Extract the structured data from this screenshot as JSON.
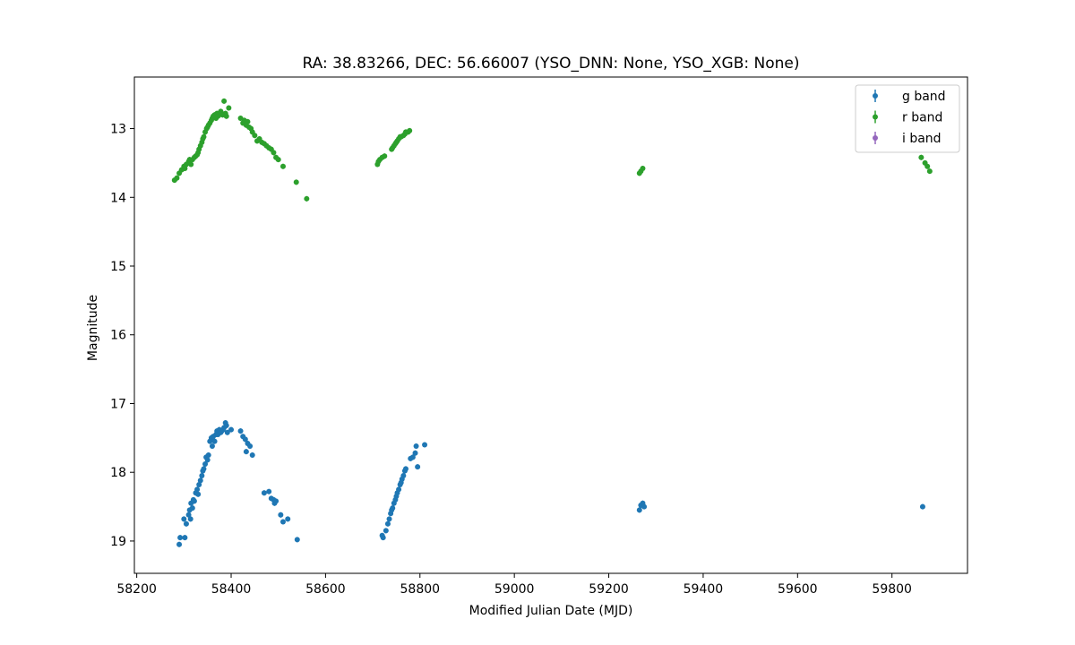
{
  "chart_data": {
    "type": "scatter",
    "title": "RA: 38.83266, DEC: 56.66007 (YSO_DNN: None, YSO_XGB: None)",
    "xlabel": "Modified Julian Date (MJD)",
    "ylabel": "Magnitude",
    "xlim": [
      58195,
      59960
    ],
    "ylim": [
      19.47,
      12.25
    ],
    "y_inverted": true,
    "grid": false,
    "legend_position": "top-right",
    "xticks": [
      58200,
      58400,
      58600,
      58800,
      59000,
      59200,
      59400,
      59600,
      59800
    ],
    "yticks": [
      13,
      14,
      15,
      16,
      17,
      18,
      19
    ],
    "series": [
      {
        "name": "g band",
        "color": "#1f77b4",
        "points": [
          [
            58290,
            19.05
          ],
          [
            58292,
            18.95
          ],
          [
            58300,
            18.68
          ],
          [
            58302,
            18.95
          ],
          [
            58305,
            18.75
          ],
          [
            58310,
            18.62
          ],
          [
            58312,
            18.55
          ],
          [
            58314,
            18.68
          ],
          [
            58315,
            18.45
          ],
          [
            58318,
            18.52
          ],
          [
            58320,
            18.4
          ],
          [
            58322,
            18.42
          ],
          [
            58325,
            18.3
          ],
          [
            58328,
            18.25
          ],
          [
            58330,
            18.32
          ],
          [
            58332,
            18.18
          ],
          [
            58335,
            18.12
          ],
          [
            58338,
            18.05
          ],
          [
            58340,
            17.98
          ],
          [
            58342,
            17.95
          ],
          [
            58345,
            17.88
          ],
          [
            58347,
            17.78
          ],
          [
            58350,
            17.82
          ],
          [
            58352,
            17.75
          ],
          [
            58355,
            17.55
          ],
          [
            58358,
            17.5
          ],
          [
            58360,
            17.62
          ],
          [
            58362,
            17.48
          ],
          [
            58365,
            17.55
          ],
          [
            58368,
            17.45
          ],
          [
            58370,
            17.4
          ],
          [
            58372,
            17.45
          ],
          [
            58375,
            17.38
          ],
          [
            58378,
            17.42
          ],
          [
            58380,
            17.4
          ],
          [
            58383,
            17.38
          ],
          [
            58385,
            17.35
          ],
          [
            58388,
            17.28
          ],
          [
            58390,
            17.32
          ],
          [
            58392,
            17.42
          ],
          [
            58400,
            17.38
          ],
          [
            58420,
            17.4
          ],
          [
            58425,
            17.48
          ],
          [
            58430,
            17.52
          ],
          [
            58432,
            17.7
          ],
          [
            58435,
            17.58
          ],
          [
            58440,
            17.62
          ],
          [
            58445,
            17.75
          ],
          [
            58470,
            18.3
          ],
          [
            58480,
            18.28
          ],
          [
            58485,
            18.38
          ],
          [
            58490,
            18.4
          ],
          [
            58492,
            18.45
          ],
          [
            58495,
            18.42
          ],
          [
            58505,
            18.62
          ],
          [
            58510,
            18.72
          ],
          [
            58520,
            18.68
          ],
          [
            58540,
            18.98
          ],
          [
            58720,
            18.92
          ],
          [
            58722,
            18.95
          ],
          [
            58728,
            18.85
          ],
          [
            58732,
            18.75
          ],
          [
            58735,
            18.68
          ],
          [
            58738,
            18.6
          ],
          [
            58740,
            18.55
          ],
          [
            58742,
            18.52
          ],
          [
            58745,
            18.45
          ],
          [
            58748,
            18.4
          ],
          [
            58750,
            18.35
          ],
          [
            58752,
            18.3
          ],
          [
            58755,
            18.25
          ],
          [
            58758,
            18.18
          ],
          [
            58760,
            18.15
          ],
          [
            58762,
            18.1
          ],
          [
            58765,
            18.05
          ],
          [
            58768,
            17.98
          ],
          [
            58770,
            17.95
          ],
          [
            58780,
            17.8
          ],
          [
            58785,
            17.78
          ],
          [
            58790,
            17.72
          ],
          [
            58792,
            17.62
          ],
          [
            58795,
            17.92
          ],
          [
            58810,
            17.6
          ],
          [
            59265,
            18.55
          ],
          [
            59268,
            18.48
          ],
          [
            59272,
            18.45
          ],
          [
            59275,
            18.5
          ],
          [
            59865,
            18.5
          ]
        ]
      },
      {
        "name": "r band",
        "color": "#2ca02c",
        "points": [
          [
            58280,
            13.75
          ],
          [
            58285,
            13.72
          ],
          [
            58290,
            13.65
          ],
          [
            58295,
            13.6
          ],
          [
            58300,
            13.55
          ],
          [
            58302,
            13.58
          ],
          [
            58305,
            13.52
          ],
          [
            58310,
            13.48
          ],
          [
            58312,
            13.45
          ],
          [
            58315,
            13.52
          ],
          [
            58318,
            13.45
          ],
          [
            58322,
            13.42
          ],
          [
            58325,
            13.4
          ],
          [
            58328,
            13.38
          ],
          [
            58330,
            13.35
          ],
          [
            58332,
            13.3
          ],
          [
            58335,
            13.25
          ],
          [
            58338,
            13.2
          ],
          [
            58340,
            13.15
          ],
          [
            58342,
            13.12
          ],
          [
            58345,
            13.05
          ],
          [
            58348,
            13.0
          ],
          [
            58350,
            12.98
          ],
          [
            58352,
            12.95
          ],
          [
            58355,
            12.92
          ],
          [
            58358,
            12.88
          ],
          [
            58360,
            12.85
          ],
          [
            58362,
            12.82
          ],
          [
            58365,
            12.8
          ],
          [
            58368,
            12.85
          ],
          [
            58370,
            12.78
          ],
          [
            58372,
            12.82
          ],
          [
            58375,
            12.8
          ],
          [
            58378,
            12.75
          ],
          [
            58380,
            12.78
          ],
          [
            58382,
            12.8
          ],
          [
            58385,
            12.6
          ],
          [
            58388,
            12.78
          ],
          [
            58390,
            12.82
          ],
          [
            58395,
            12.7
          ],
          [
            58420,
            12.85
          ],
          [
            58425,
            12.92
          ],
          [
            58428,
            12.88
          ],
          [
            58432,
            12.95
          ],
          [
            58435,
            12.9
          ],
          [
            58438,
            12.98
          ],
          [
            58442,
            13.0
          ],
          [
            58445,
            13.05
          ],
          [
            58450,
            13.1
          ],
          [
            58455,
            13.18
          ],
          [
            58460,
            13.15
          ],
          [
            58465,
            13.2
          ],
          [
            58470,
            13.22
          ],
          [
            58475,
            13.25
          ],
          [
            58480,
            13.28
          ],
          [
            58485,
            13.3
          ],
          [
            58490,
            13.35
          ],
          [
            58495,
            13.42
          ],
          [
            58500,
            13.45
          ],
          [
            58510,
            13.55
          ],
          [
            58538,
            13.78
          ],
          [
            58560,
            14.02
          ],
          [
            58710,
            13.52
          ],
          [
            58712,
            13.48
          ],
          [
            58715,
            13.45
          ],
          [
            58720,
            13.42
          ],
          [
            58725,
            13.4
          ],
          [
            58740,
            13.3
          ],
          [
            58742,
            13.28
          ],
          [
            58745,
            13.25
          ],
          [
            58748,
            13.22
          ],
          [
            58750,
            13.2
          ],
          [
            58752,
            13.18
          ],
          [
            58755,
            13.15
          ],
          [
            58758,
            13.12
          ],
          [
            58760,
            13.12
          ],
          [
            58765,
            13.1
          ],
          [
            58768,
            13.08
          ],
          [
            58770,
            13.05
          ],
          [
            58775,
            13.05
          ],
          [
            58778,
            13.03
          ],
          [
            59265,
            13.65
          ],
          [
            59268,
            13.62
          ],
          [
            59272,
            13.58
          ],
          [
            59862,
            13.42
          ],
          [
            59870,
            13.5
          ],
          [
            59875,
            13.55
          ],
          [
            59880,
            13.62
          ]
        ]
      },
      {
        "name": "i band",
        "color": "#9467bd",
        "points": []
      }
    ]
  }
}
